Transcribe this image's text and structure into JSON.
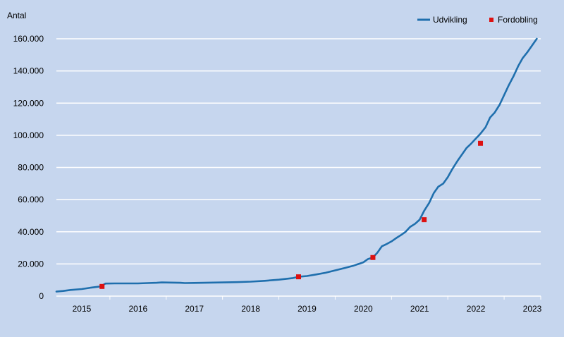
{
  "chart_data": {
    "type": "line",
    "ylabel": "Antal",
    "ylim": [
      0,
      160000
    ],
    "xlim": [
      2014.55,
      2023.15
    ],
    "yticks": [
      0,
      20000,
      40000,
      60000,
      80000,
      100000,
      120000,
      140000,
      160000
    ],
    "ytick_labels": [
      "0",
      "20.000",
      "40.000",
      "60.000",
      "80.000",
      "100.000",
      "120.000",
      "140.000",
      "160.000"
    ],
    "xtick_labels": [
      "2015",
      "2016",
      "2017",
      "2018",
      "2019",
      "2020",
      "2021",
      "2022",
      "2023"
    ],
    "xtick_positions": [
      2015,
      2016,
      2017,
      2018,
      2019,
      2020,
      2021,
      2022,
      2023
    ],
    "grid": true,
    "legend_position": "top-right",
    "series": [
      {
        "name": "Udvikling",
        "color": "#1f6fad",
        "style": "line",
        "x": [
          2014.55,
          2014.67,
          2014.8,
          2015.0,
          2015.17,
          2015.33,
          2015.42,
          2015.58,
          2015.75,
          2016.0,
          2016.17,
          2016.33,
          2016.42,
          2016.58,
          2016.75,
          2016.83,
          2017.0,
          2017.17,
          2017.33,
          2017.5,
          2017.75,
          2018.0,
          2018.25,
          2018.5,
          2018.75,
          2018.85,
          2019.0,
          2019.17,
          2019.33,
          2019.5,
          2019.67,
          2019.83,
          2020.0,
          2020.08,
          2020.17,
          2020.25,
          2020.33,
          2020.42,
          2020.5,
          2020.58,
          2020.67,
          2020.75,
          2020.83,
          2020.92,
          2021.0,
          2021.08,
          2021.17,
          2021.25,
          2021.33,
          2021.42,
          2021.5,
          2021.58,
          2021.67,
          2021.75,
          2021.83,
          2021.92,
          2022.0,
          2022.08,
          2022.17,
          2022.25,
          2022.33,
          2022.42,
          2022.5,
          2022.58,
          2022.67,
          2022.75,
          2022.83,
          2022.92,
          2023.0,
          2023.08
        ],
        "y": [
          2800,
          3200,
          3800,
          4400,
          5300,
          6000,
          7800,
          7900,
          7900,
          7900,
          8100,
          8300,
          8500,
          8400,
          8300,
          8100,
          8200,
          8300,
          8400,
          8500,
          8700,
          9000,
          9500,
          10200,
          11200,
          12000,
          12500,
          13500,
          14500,
          16000,
          17500,
          19000,
          21000,
          23000,
          24000,
          27000,
          31000,
          32500,
          34000,
          36000,
          38000,
          40000,
          43000,
          45000,
          47500,
          53000,
          58000,
          64000,
          68000,
          70000,
          74000,
          79000,
          84000,
          88000,
          92000,
          95000,
          98000,
          101000,
          105000,
          111000,
          114000,
          119000,
          125000,
          131000,
          137000,
          143000,
          148000,
          152000,
          156000,
          160000
        ]
      },
      {
        "name": "Fordobling",
        "color": "#dd1111",
        "style": "marker",
        "x": [
          2015.36,
          2018.85,
          2020.17,
          2021.08,
          2022.08
        ],
        "y": [
          6000,
          12000,
          24000,
          47500,
          95000
        ]
      }
    ]
  }
}
